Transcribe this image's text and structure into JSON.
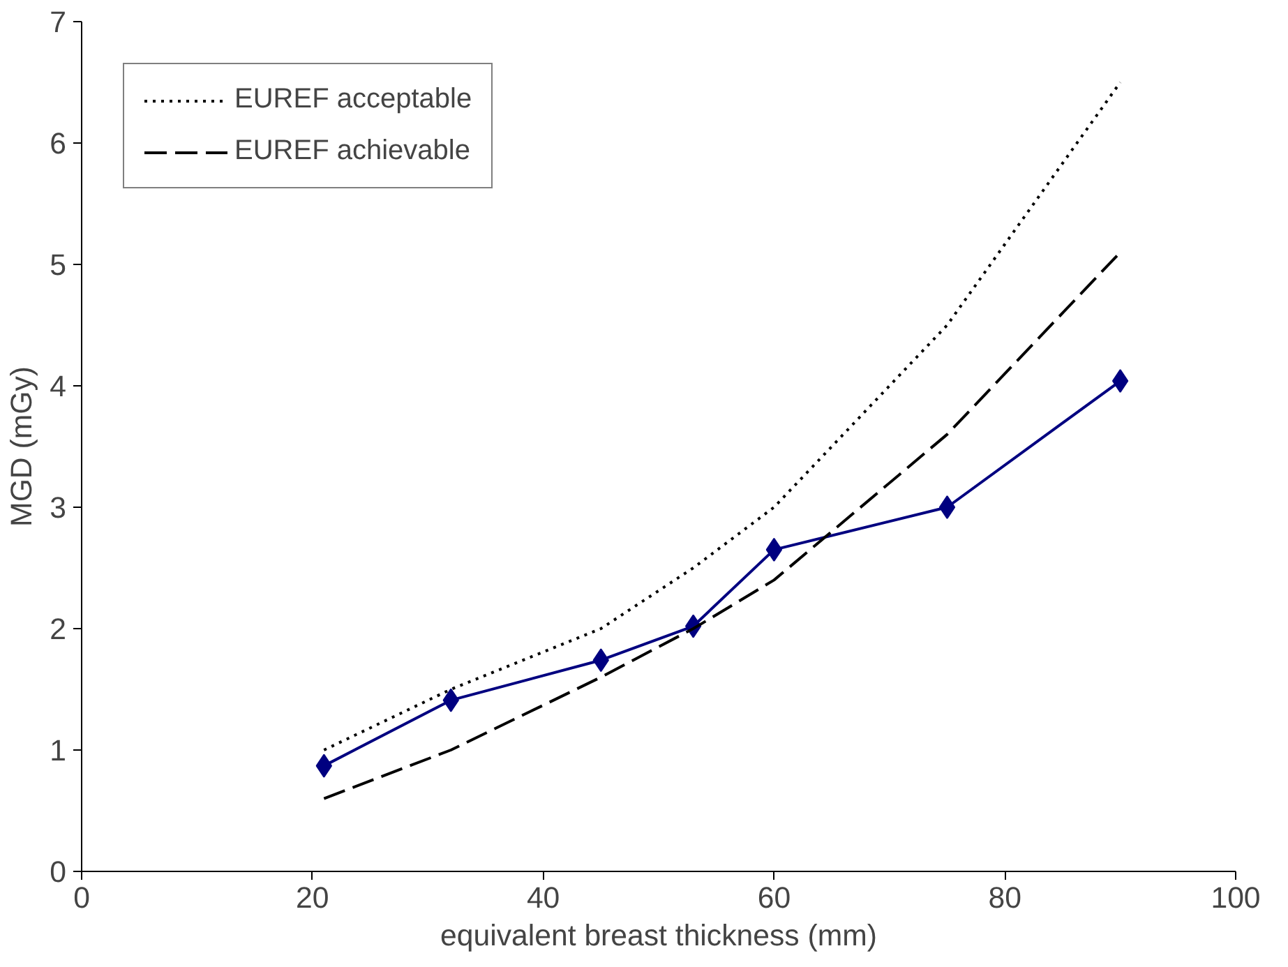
{
  "chart_data": {
    "type": "line",
    "xlabel": "equivalent breast thickness (mm)",
    "ylabel": "MGD (mGy)",
    "x": [
      21,
      32,
      45,
      53,
      60,
      75,
      90
    ],
    "series": [
      {
        "color": "#000080",
        "values": [
          0.87,
          1.41,
          1.74,
          2.02,
          2.65,
          3.0,
          4.04
        ],
        "marker": "diamond",
        "line_style": "solid"
      },
      {
        "name": "EUREF acceptable",
        "color": "#000000",
        "values": [
          1.0,
          1.5,
          2.0,
          2.5,
          3.0,
          4.5,
          6.5
        ],
        "marker": "none",
        "line_style": "dotted"
      },
      {
        "name": "EUREF achievable",
        "color": "#000000",
        "values": [
          0.6,
          1.0,
          1.6,
          2.0,
          2.4,
          3.6,
          5.1
        ],
        "marker": "none",
        "line_style": "dashed"
      }
    ],
    "xlim": [
      0,
      100
    ],
    "xticks": [
      0,
      20,
      40,
      60,
      80,
      100
    ],
    "ylim": [
      0,
      7
    ],
    "yticks": [
      0,
      1,
      2,
      3,
      4,
      5,
      6,
      7
    ],
    "grid": false,
    "legend": "top left"
  }
}
